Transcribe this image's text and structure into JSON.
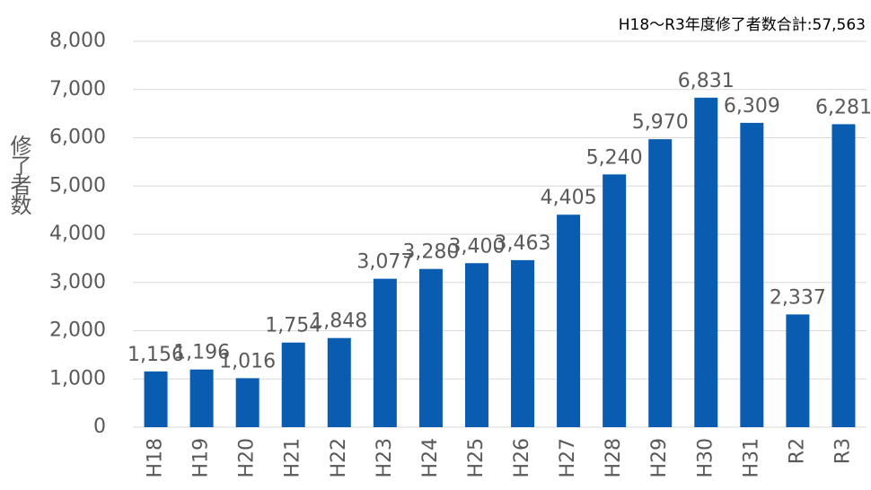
{
  "chart_data": {
    "type": "bar",
    "title": "H18〜R3年度修了者数合計:57,563",
    "y_label": "修了者数",
    "categories": [
      "H18",
      "H19",
      "H20",
      "H21",
      "H22",
      "H23",
      "H24",
      "H25",
      "H26",
      "H27",
      "H28",
      "H29",
      "H30",
      "H31",
      "R2",
      "R3"
    ],
    "values": [
      1156,
      1196,
      1016,
      1754,
      1848,
      3077,
      3280,
      3400,
      3463,
      4405,
      5240,
      5970,
      6831,
      6309,
      2337,
      6281
    ],
    "value_labels": [
      "1,156",
      "1,196",
      "1,016",
      "1,754",
      "1,848",
      "3,077",
      "3,280",
      "3,400",
      "3,463",
      "4,405",
      "5,240",
      "5,970",
      "6,831",
      "6,309",
      "2,337",
      "6,281"
    ],
    "color": "#0a5cb0",
    "ylim": [
      0,
      8000
    ],
    "yticks": [
      0,
      {
        "value": 1000,
        "label": "1,000"
      },
      {
        "value": 2000,
        "label": "2,000"
      },
      {
        "value": 3000,
        "label": "3,000"
      },
      {
        "value": 4000,
        "label": "4,000"
      },
      {
        "value": 5000,
        "label": "5,000"
      },
      {
        "value": 6000,
        "label": "6,000"
      },
      {
        "value": 7000,
        "label": "7,000"
      },
      {
        "value": 8000,
        "label": "8,000"
      }
    ],
    "grid": true
  }
}
